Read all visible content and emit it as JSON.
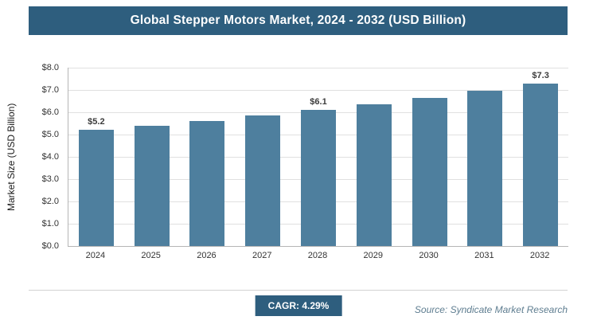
{
  "header": {
    "title": "Global Stepper Motors Market, 2024 - 2032 (USD Billion)"
  },
  "chart_data": {
    "type": "bar",
    "title": "Global Stepper Motors Market, 2024 - 2032 (USD Billion)",
    "categories": [
      "2024",
      "2025",
      "2026",
      "2027",
      "2028",
      "2029",
      "2030",
      "2031",
      "2032"
    ],
    "values": [
      5.2,
      5.4,
      5.6,
      5.85,
      6.1,
      6.35,
      6.65,
      6.95,
      7.3
    ],
    "data_labels": [
      "$5.2",
      "",
      "",
      "",
      "$6.1",
      "",
      "",
      "",
      "$7.3"
    ],
    "xlabel": "",
    "ylabel": "Market Size (USD Billion)",
    "ylim": [
      0,
      8
    ],
    "ytick_step": 1,
    "ytick_labels": [
      "$0.0",
      "$1.0",
      "$2.0",
      "$3.0",
      "$4.0",
      "$5.0",
      "$6.0",
      "$7.0",
      "$8.0"
    ],
    "grid": true,
    "legend": "none",
    "bar_color": "#4e7f9e"
  },
  "footer": {
    "cagr_label": "CAGR: 4.29%",
    "source": "Source: Syndicate Market Research"
  },
  "colors": {
    "banner_background": "#2e5e7e",
    "banner_text": "#ffffff",
    "bar": "#4e7f9e",
    "gridline": "#e0e0e0",
    "source_text": "#5e7d90"
  }
}
